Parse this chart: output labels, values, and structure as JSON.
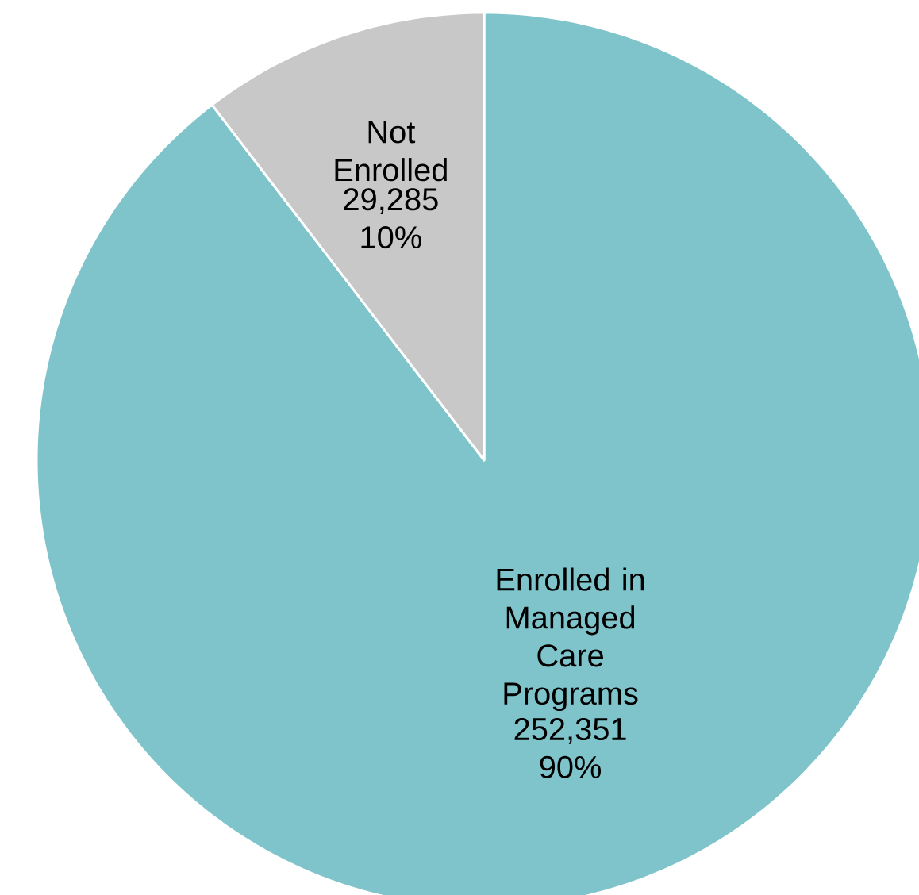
{
  "chart_data": {
    "type": "pie",
    "categories": [
      "Enrolled in Managed Care Programs",
      "Not Enrolled"
    ],
    "values": [
      252351,
      29285
    ],
    "colors": [
      "#7fc4cb",
      "#c8c8c8"
    ],
    "value_labels": [
      "252,351 90%",
      "29,285 10%"
    ]
  }
}
